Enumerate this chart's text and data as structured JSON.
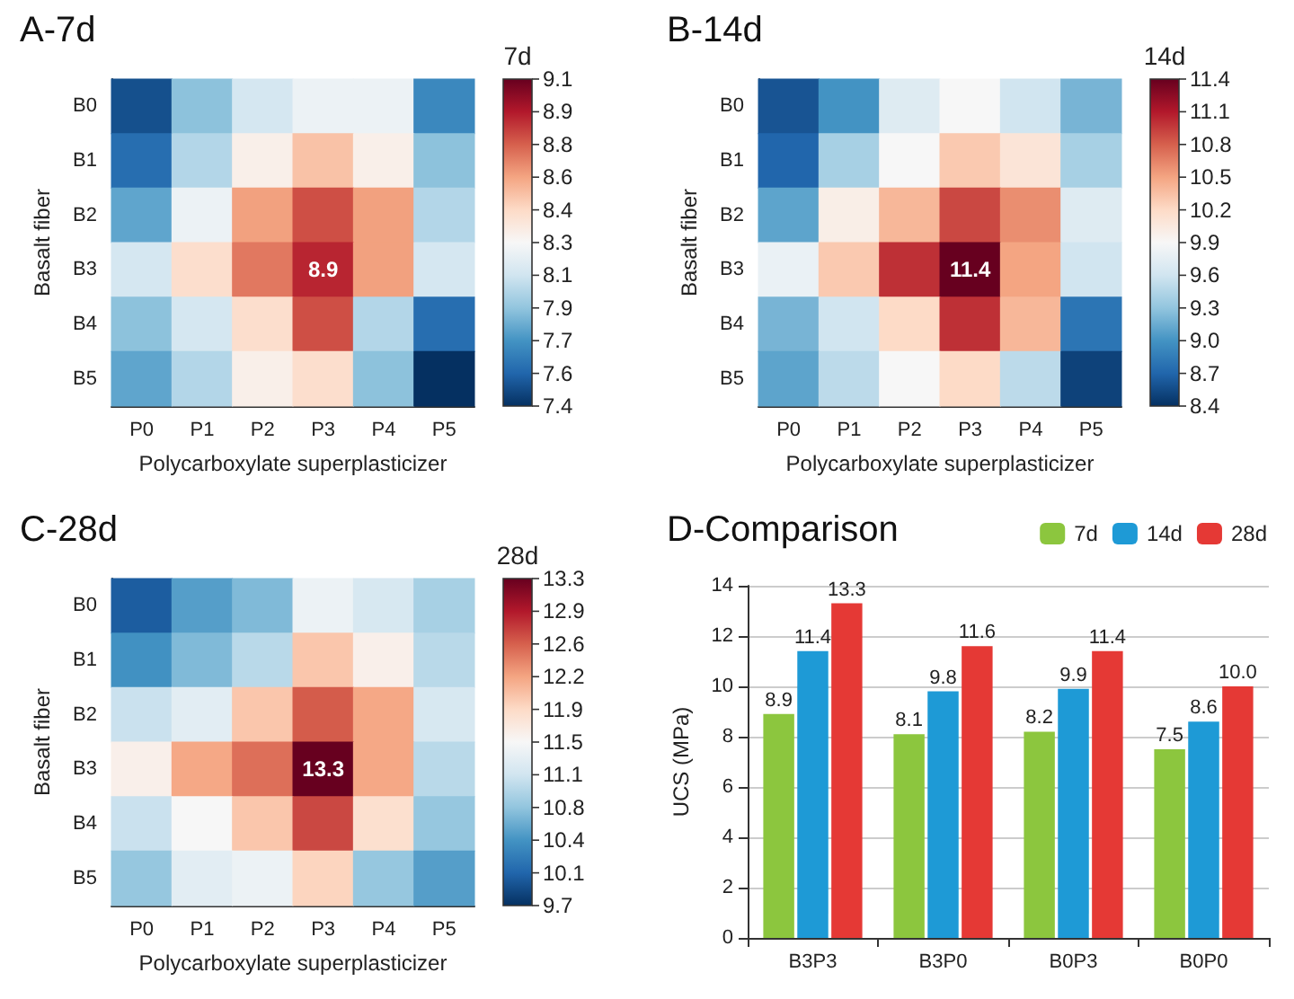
{
  "chart_data": [
    {
      "type": "heatmap",
      "title": "A-7d",
      "xlabel": "Polycarboxylate superplasticizer",
      "ylabel": "Basalt fiber",
      "clabel": "7d",
      "categories": [
        "P0",
        "P1",
        "P2",
        "P3",
        "P4",
        "P5"
      ],
      "y_categories": [
        "B0",
        "B1",
        "B2",
        "B3",
        "B4",
        "B5"
      ],
      "cells": [
        [
          7.5,
          7.9,
          8.1,
          8.2,
          8.2,
          7.7
        ],
        [
          7.6,
          8.0,
          8.3,
          8.5,
          8.3,
          7.9
        ],
        [
          7.8,
          8.2,
          8.6,
          8.8,
          8.6,
          8.0
        ],
        [
          8.1,
          8.4,
          8.7,
          8.9,
          8.6,
          8.1
        ],
        [
          7.9,
          8.1,
          8.4,
          8.8,
          8.0,
          7.6
        ],
        [
          7.8,
          8.0,
          8.3,
          8.4,
          7.9,
          7.4
        ]
      ],
      "clim": [
        7.4,
        9.1
      ],
      "cticks": [
        7.4,
        {
          "value": 7.57,
          "label": "7.6"
        },
        {
          "value": 7.74,
          "label": "7.7"
        },
        {
          "value": 7.91,
          "label": "7.9"
        },
        {
          "value": 8.08,
          "label": "8.1"
        },
        {
          "value": 8.25,
          "label": "8.3"
        },
        {
          "value": 8.42,
          "label": "8.4"
        },
        {
          "value": 8.59,
          "label": "8.6"
        },
        {
          "value": 8.76,
          "label": "8.8"
        },
        {
          "value": 8.93,
          "label": "8.9"
        },
        9.1
      ],
      "annotations": [
        "8.9"
      ]
    },
    {
      "type": "heatmap",
      "title": "B-14d",
      "xlabel": "Polycarboxylate superplasticizer",
      "ylabel": "Basalt fiber",
      "clabel": "14d",
      "categories": [
        "P0",
        "P1",
        "P2",
        "P3",
        "P4",
        "P5"
      ],
      "y_categories": [
        "B0",
        "B1",
        "B2",
        "B3",
        "B4",
        "B5"
      ],
      "cells": [
        [
          8.6,
          9.0,
          9.7,
          9.9,
          9.6,
          9.2
        ],
        [
          8.7,
          9.4,
          9.9,
          10.3,
          10.1,
          9.4
        ],
        [
          9.1,
          10.0,
          10.4,
          10.9,
          10.6,
          9.7
        ],
        [
          9.8,
          10.3,
          11.0,
          11.4,
          10.5,
          9.6
        ],
        [
          9.2,
          9.6,
          10.2,
          11.0,
          10.4,
          8.8
        ],
        [
          9.1,
          9.5,
          9.9,
          10.2,
          9.5,
          8.5
        ]
      ],
      "clim": [
        8.4,
        11.4
      ],
      "cticks": [
        8.4,
        8.7,
        {
          "value": 9,
          "label": "9.0"
        },
        9.3,
        9.6,
        9.9,
        10.2,
        10.5,
        10.8,
        11.1,
        11.4
      ],
      "annotations": [
        "11.4"
      ]
    },
    {
      "type": "heatmap",
      "title": "C-28d",
      "xlabel": "Polycarboxylate superplasticizer",
      "ylabel": "Basalt fiber",
      "clabel": "28d",
      "categories": [
        "P0",
        "P1",
        "P2",
        "P3",
        "P4",
        "P5"
      ],
      "y_categories": [
        "B0",
        "B1",
        "B2",
        "B3",
        "B4",
        "B5"
      ],
      "cells": [
        [
          10.0,
          10.5,
          10.7,
          11.4,
          11.2,
          10.9
        ],
        [
          10.4,
          10.7,
          11.0,
          12.0,
          11.6,
          11.0
        ],
        [
          11.1,
          11.3,
          12.0,
          12.6,
          12.2,
          11.2
        ],
        [
          11.6,
          12.2,
          12.5,
          13.3,
          12.2,
          11.0
        ],
        [
          11.1,
          11.5,
          12.0,
          12.7,
          11.8,
          10.8
        ],
        [
          10.8,
          11.3,
          11.4,
          11.9,
          10.8,
          10.5
        ]
      ],
      "clim": [
        9.7,
        13.3
      ],
      "cticks": [
        9.7,
        {
          "value": 10.06,
          "label": "10.1"
        },
        {
          "value": 10.42,
          "label": "10.4"
        },
        {
          "value": 10.78,
          "label": "10.8"
        },
        {
          "value": 11.14,
          "label": "11.1"
        },
        11.5,
        {
          "value": 11.86,
          "label": "11.9"
        },
        {
          "value": 12.22,
          "label": "12.2"
        },
        {
          "value": 12.58,
          "label": "12.6"
        },
        {
          "value": 12.94,
          "label": "12.9"
        },
        13.3
      ],
      "annotations": [
        "13.3"
      ]
    },
    {
      "type": "bar",
      "title": "D-Comparison",
      "ylabel": "UCS (MPa)",
      "categories": [
        "B3P3",
        "B3P0",
        "B0P3",
        "B0P0"
      ],
      "series": [
        {
          "name": "7d",
          "color": "#8cc63e",
          "values": [
            8.9,
            8.1,
            8.2,
            7.5
          ],
          "value_labels": [
            "8.9",
            "8.1",
            "8.2",
            "7.5"
          ]
        },
        {
          "name": "14d",
          "color": "#1e9ad6",
          "values": [
            11.4,
            9.8,
            9.9,
            8.6
          ],
          "value_labels": [
            "11.4",
            "9.8",
            "9.9",
            "8.6"
          ]
        },
        {
          "name": "28d",
          "color": "#e53935",
          "values": [
            13.3,
            11.6,
            11.4,
            10.0
          ],
          "value_labels": [
            "13.3",
            "11.6",
            "11.4",
            "10.0"
          ]
        }
      ],
      "ylim": [
        0,
        14
      ],
      "yticks": [
        0,
        2,
        4,
        6,
        8,
        10,
        12,
        14
      ],
      "grid": "y",
      "legend": "top right"
    }
  ]
}
